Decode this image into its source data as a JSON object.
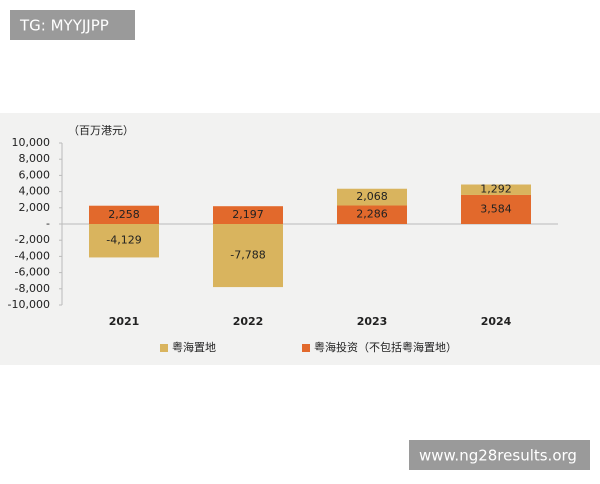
{
  "watermarks": {
    "top": "TG: MYYJJPP",
    "bottom": "www.ng28results.org"
  },
  "chart_data": {
    "type": "bar",
    "stacked": true,
    "unit_label": "（百万港元）",
    "categories": [
      "2021",
      "2022",
      "2023",
      "2024"
    ],
    "series": [
      {
        "name": "粤海置地",
        "color": "#d9b45e",
        "values": [
          -4129,
          -7788,
          2068,
          1292
        ],
        "value_labels": [
          "-4,129",
          "-7,788",
          "2,068",
          "1,292"
        ]
      },
      {
        "name": "粤海投资（不包括粤海置地）",
        "color": "#e2692c",
        "values": [
          2258,
          2197,
          2286,
          3584
        ],
        "value_labels": [
          "2,258",
          "2,197",
          "2,286",
          "3,584"
        ]
      }
    ],
    "ylim": [
      -10000,
      10000
    ],
    "yticks": [
      {
        "value": 10000,
        "label": "10,000"
      },
      {
        "value": 8000,
        "label": "8,000"
      },
      {
        "value": 6000,
        "label": "6,000"
      },
      {
        "value": 4000,
        "label": "4,000"
      },
      {
        "value": 2000,
        "label": "2,000"
      },
      {
        "value": 0,
        "label": "-"
      },
      {
        "value": -2000,
        "label": "-2,000"
      },
      {
        "value": -4000,
        "label": "-4,000"
      },
      {
        "value": -6000,
        "label": "-6,000"
      },
      {
        "value": -8000,
        "label": "-8,000"
      },
      {
        "value": -10000,
        "label": "-10,000"
      }
    ],
    "grid": false,
    "legend": "bottom"
  }
}
